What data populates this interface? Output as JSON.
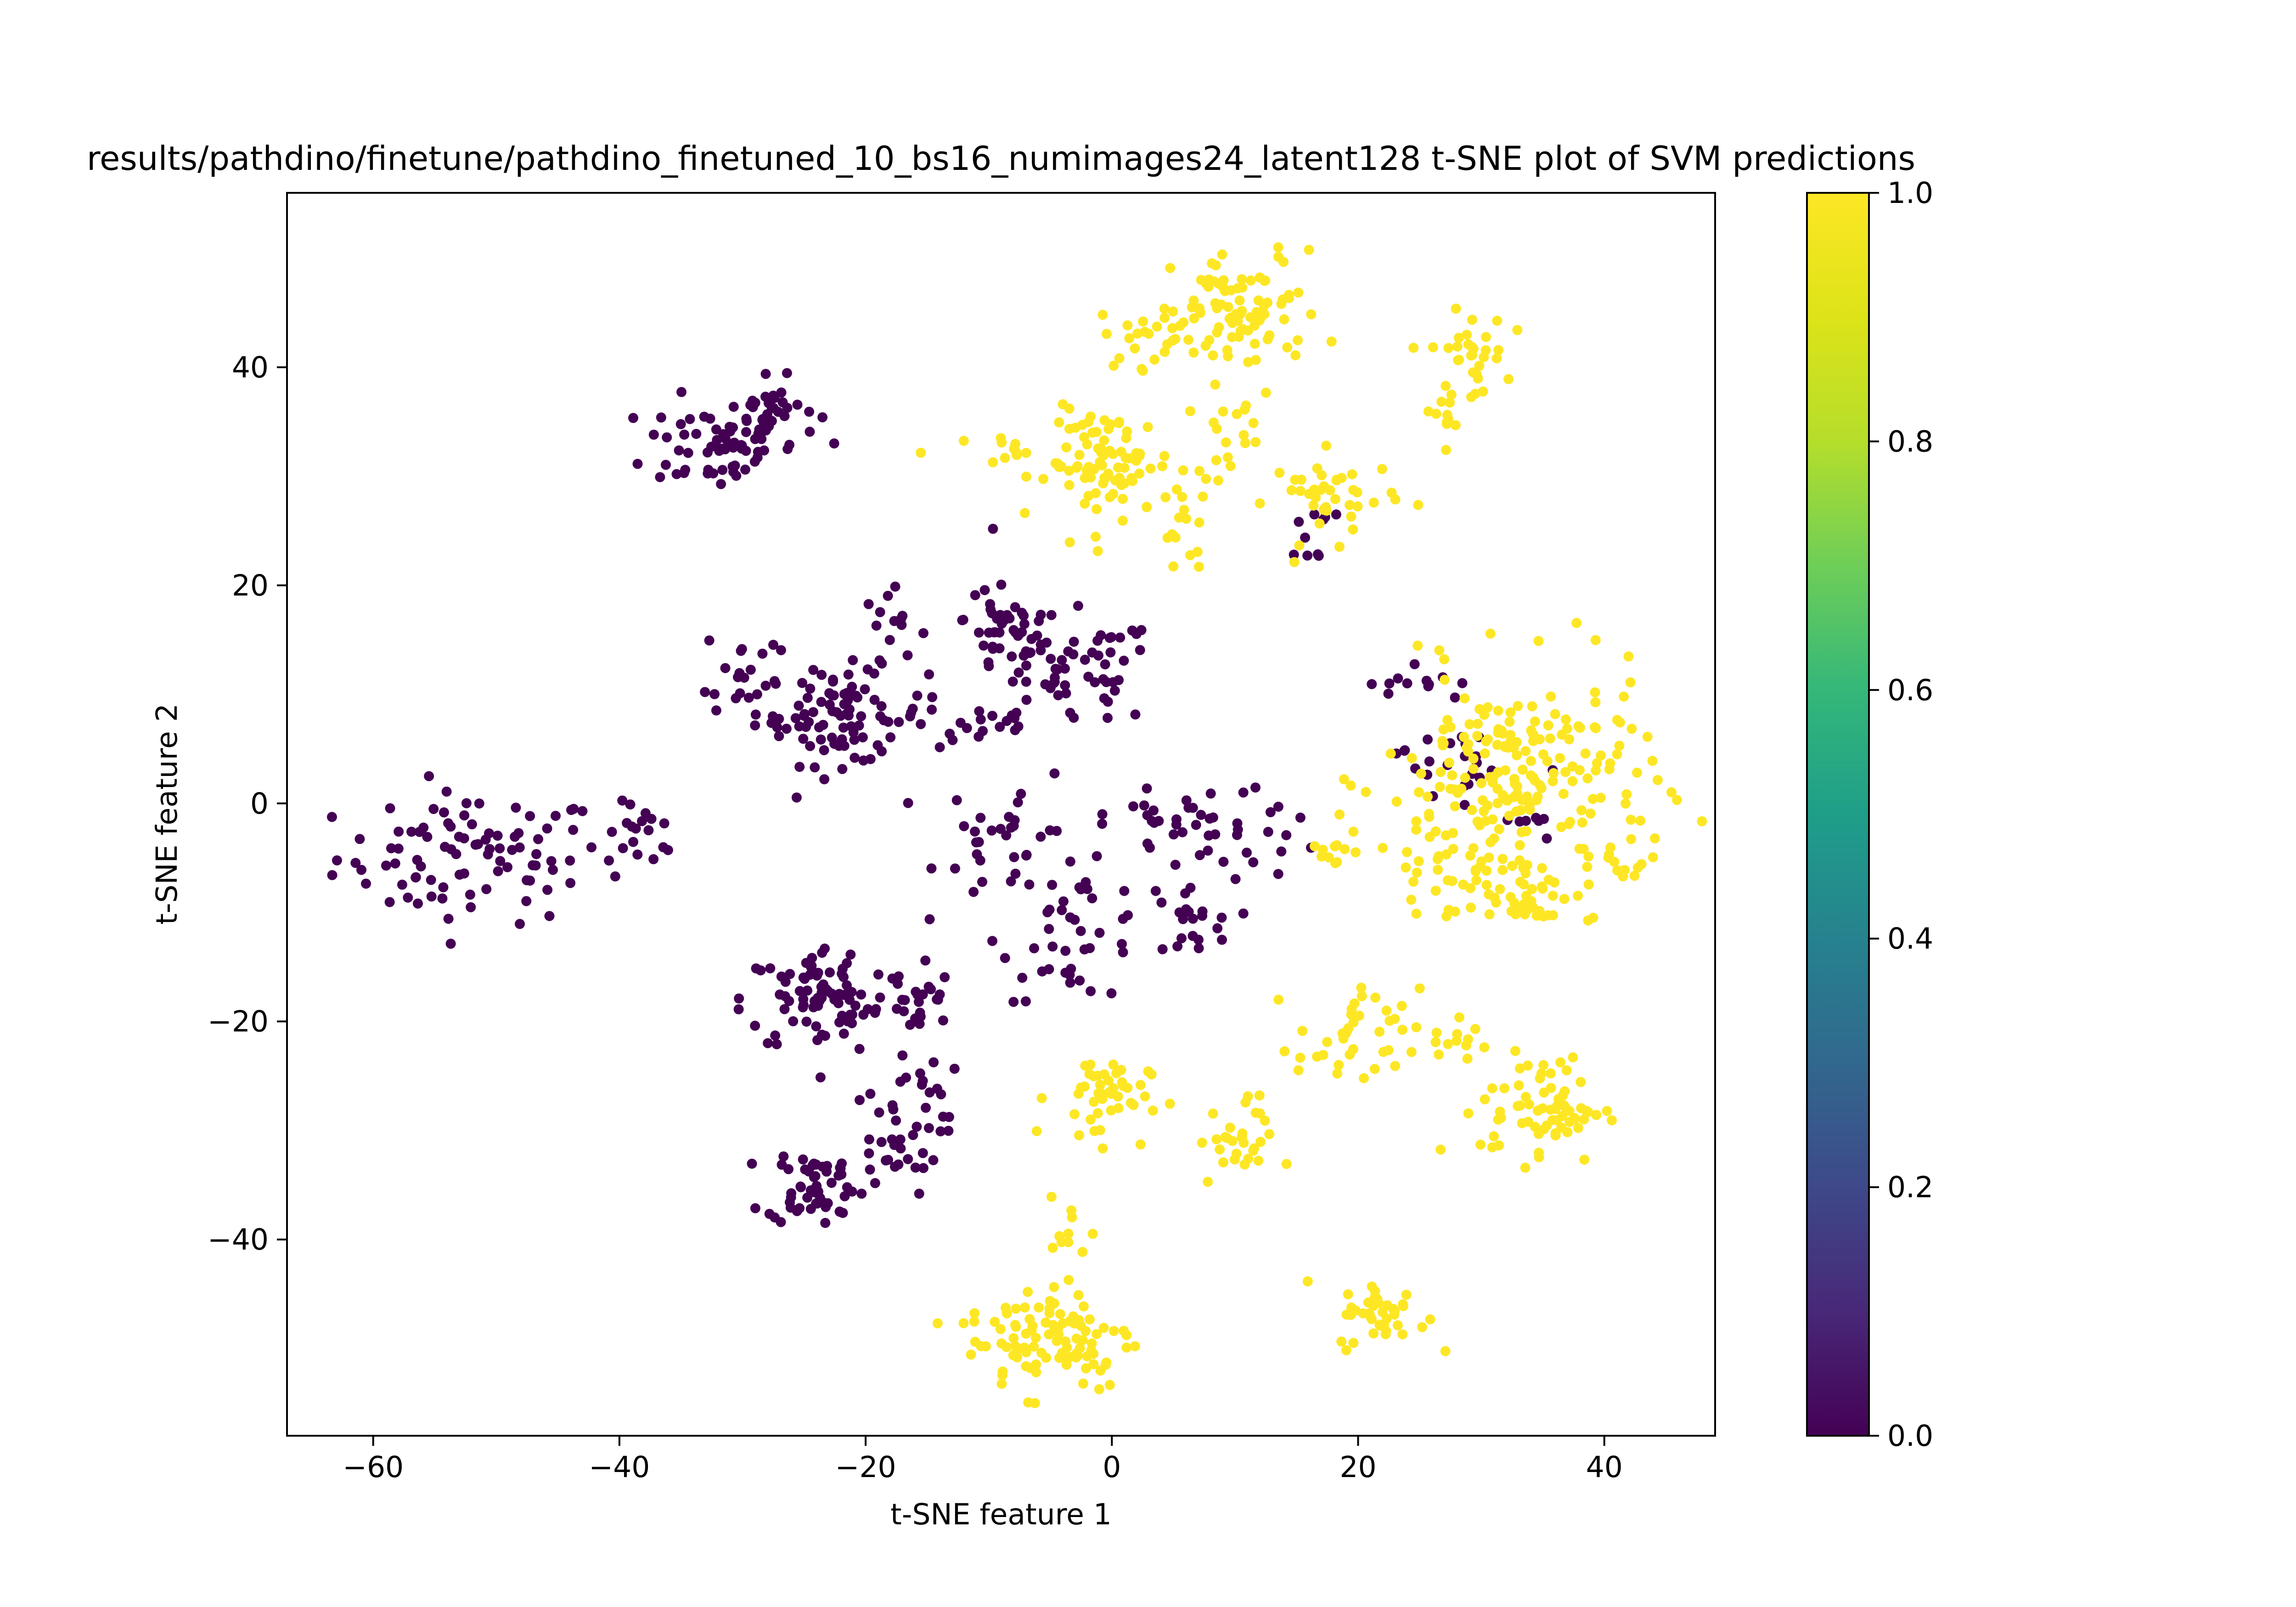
{
  "chart_data": {
    "type": "scatter",
    "title": "results/pathdino/finetune/pathdino_finetuned_10_bs16_numimages24_latent128 t-SNE plot of SVM predictions",
    "xlabel": "t-SNE feature 1",
    "ylabel": "t-SNE feature 2",
    "xlim": [
      -67,
      49
    ],
    "ylim": [
      -58,
      56
    ],
    "xticks": [
      "−60",
      "−40",
      "−20",
      "0",
      "20",
      "40"
    ],
    "yticks": [
      "−40",
      "−20",
      "0",
      "20",
      "40"
    ],
    "grid": false,
    "legend": "none",
    "colormap": "viridis",
    "colorbar": {
      "range": [
        0.0,
        1.0
      ],
      "ticks": [
        "0.0",
        "0.2",
        "0.4",
        "0.6",
        "0.8",
        "1.0"
      ]
    },
    "colors": {
      "class_0": "#440154",
      "class_1": "#fde725"
    },
    "clusters": [
      {
        "label": 0,
        "center": [
          -52,
          -5
        ],
        "spread": [
          5.5,
          3.0
        ],
        "count": 90
      },
      {
        "label": 0,
        "center": [
          -38,
          -3
        ],
        "spread": [
          1.5,
          1.5
        ],
        "count": 18
      },
      {
        "label": 0,
        "center": [
          -32,
          33
        ],
        "spread": [
          3.0,
          2.2
        ],
        "count": 60
      },
      {
        "label": 0,
        "center": [
          -28,
          36
        ],
        "spread": [
          2.0,
          1.5
        ],
        "count": 35
      },
      {
        "label": 0,
        "center": [
          -30,
          12
        ],
        "spread": [
          1.5,
          2.5
        ],
        "count": 20
      },
      {
        "label": 0,
        "center": [
          -22,
          8
        ],
        "spread": [
          3.5,
          2.2
        ],
        "count": 90
      },
      {
        "label": 0,
        "center": [
          -18,
          15
        ],
        "spread": [
          1.5,
          2.5
        ],
        "count": 15
      },
      {
        "label": 0,
        "center": [
          -10,
          7
        ],
        "spread": [
          2.0,
          1.0
        ],
        "count": 15
      },
      {
        "label": 0,
        "center": [
          -9,
          17
        ],
        "spread": [
          1.5,
          2.5
        ],
        "count": 30
      },
      {
        "label": 0,
        "center": [
          -4,
          12
        ],
        "spread": [
          4.0,
          2.5
        ],
        "count": 70
      },
      {
        "label": 0,
        "center": [
          -8,
          -3
        ],
        "spread": [
          3.0,
          3.0
        ],
        "count": 35
      },
      {
        "label": 0,
        "center": [
          -3,
          -12
        ],
        "spread": [
          3.0,
          3.0
        ],
        "count": 40
      },
      {
        "label": 0,
        "center": [
          5,
          -2
        ],
        "spread": [
          2.5,
          1.5
        ],
        "count": 30
      },
      {
        "label": 0,
        "center": [
          12,
          -2
        ],
        "spread": [
          2.5,
          2.0
        ],
        "count": 15
      },
      {
        "label": 0,
        "center": [
          6,
          -11
        ],
        "spread": [
          2.0,
          2.0
        ],
        "count": 22
      },
      {
        "label": 0,
        "center": [
          -23,
          -18
        ],
        "spread": [
          3.5,
          2.5
        ],
        "count": 90
      },
      {
        "label": 0,
        "center": [
          -16,
          -18
        ],
        "spread": [
          1.5,
          2.0
        ],
        "count": 20
      },
      {
        "label": 0,
        "center": [
          -24,
          -35
        ],
        "spread": [
          2.0,
          1.8
        ],
        "count": 55
      },
      {
        "label": 0,
        "center": [
          -18,
          -31
        ],
        "spread": [
          2.0,
          2.5
        ],
        "count": 30
      },
      {
        "label": 0,
        "center": [
          -15,
          -26
        ],
        "spread": [
          1.2,
          1.5
        ],
        "count": 12
      },
      {
        "label": 0,
        "center": [
          16,
          25
        ],
        "spread": [
          1.0,
          1.5
        ],
        "count": 10
      },
      {
        "label": 0,
        "center": [
          25,
          11
        ],
        "spread": [
          2.0,
          1.0
        ],
        "count": 12
      },
      {
        "label": 0,
        "center": [
          27,
          4
        ],
        "spread": [
          2.0,
          1.5
        ],
        "count": 20
      },
      {
        "label": 0,
        "center": [
          33,
          -1
        ],
        "spread": [
          2.0,
          2.0
        ],
        "count": 10
      },
      {
        "label": 1,
        "center": [
          11,
          45
        ],
        "spread": [
          3.0,
          2.8
        ],
        "count": 80
      },
      {
        "label": 1,
        "center": [
          4,
          43
        ],
        "spread": [
          2.5,
          1.5
        ],
        "count": 30
      },
      {
        "label": 1,
        "center": [
          29,
          41
        ],
        "spread": [
          1.5,
          2.0
        ],
        "count": 30
      },
      {
        "label": 1,
        "center": [
          27,
          36
        ],
        "spread": [
          1.0,
          1.5
        ],
        "count": 12
      },
      {
        "label": 1,
        "center": [
          0,
          31
        ],
        "spread": [
          2.5,
          2.5
        ],
        "count": 80
      },
      {
        "label": 1,
        "center": [
          -8,
          32
        ],
        "spread": [
          2.0,
          1.0
        ],
        "count": 15
      },
      {
        "label": 1,
        "center": [
          9,
          34
        ],
        "spread": [
          1.5,
          2.0
        ],
        "count": 20
      },
      {
        "label": 1,
        "center": [
          6,
          25
        ],
        "spread": [
          1.2,
          2.0
        ],
        "count": 15
      },
      {
        "label": 1,
        "center": [
          18,
          28
        ],
        "spread": [
          2.5,
          2.0
        ],
        "count": 40
      },
      {
        "label": 1,
        "center": [
          33,
          2
        ],
        "spread": [
          5.5,
          5.0
        ],
        "count": 210
      },
      {
        "label": 1,
        "center": [
          27,
          -7
        ],
        "spread": [
          2.5,
          1.5
        ],
        "count": 25
      },
      {
        "label": 1,
        "center": [
          34,
          -8
        ],
        "spread": [
          2.5,
          1.5
        ],
        "count": 40
      },
      {
        "label": 1,
        "center": [
          42,
          -5
        ],
        "spread": [
          1.0,
          1.5
        ],
        "count": 10
      },
      {
        "label": 1,
        "center": [
          18,
          -4
        ],
        "spread": [
          1.2,
          1.0
        ],
        "count": 10
      },
      {
        "label": 1,
        "center": [
          -1,
          -27
        ],
        "spread": [
          2.0,
          2.0
        ],
        "count": 45
      },
      {
        "label": 1,
        "center": [
          10,
          -31
        ],
        "spread": [
          1.5,
          2.0
        ],
        "count": 30
      },
      {
        "label": 1,
        "center": [
          20,
          -22
        ],
        "spread": [
          2.5,
          2.5
        ],
        "count": 40
      },
      {
        "label": 1,
        "center": [
          28,
          -21
        ],
        "spread": [
          1.5,
          1.0
        ],
        "count": 10
      },
      {
        "label": 1,
        "center": [
          35,
          -28
        ],
        "spread": [
          2.5,
          2.5
        ],
        "count": 70
      },
      {
        "label": 1,
        "center": [
          -5,
          -49
        ],
        "spread": [
          3.5,
          2.5
        ],
        "count": 100
      },
      {
        "label": 1,
        "center": [
          -3,
          -40
        ],
        "spread": [
          1.0,
          2.0
        ],
        "count": 12
      },
      {
        "label": 1,
        "center": [
          22,
          -47
        ],
        "spread": [
          1.8,
          1.5
        ],
        "count": 40
      }
    ]
  }
}
